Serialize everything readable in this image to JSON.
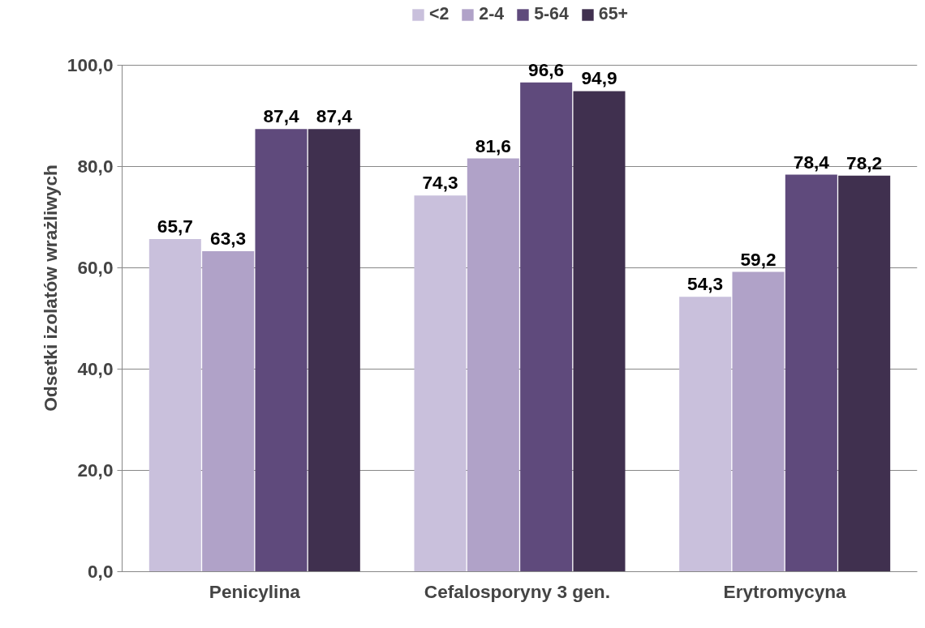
{
  "chart_data": {
    "type": "bar",
    "ylabel": "Odsetki izolatów wrażliwych",
    "categories": [
      "Penicylina",
      "Cefalosporyny  3 gen.",
      "Erytromycyna"
    ],
    "series": [
      {
        "name": "<2",
        "color": "#c9c0dc",
        "values": [
          65.7,
          74.3,
          54.3
        ],
        "value_labels": [
          "65,7",
          "74,3",
          "54,3"
        ]
      },
      {
        "name": "2-4",
        "color": "#b0a2c8",
        "values": [
          63.3,
          81.6,
          59.2
        ],
        "value_labels": [
          "63,3",
          "81,6",
          "59,2"
        ]
      },
      {
        "name": "5-64",
        "color": "#5f4a7c",
        "values": [
          87.4,
          96.6,
          78.4
        ],
        "value_labels": [
          "87,4",
          "96,6",
          "78,4"
        ]
      },
      {
        "name": "65+",
        "color": "#40304f",
        "values": [
          87.4,
          94.9,
          78.2
        ],
        "value_labels": [
          "87,4",
          "94,9",
          "78,2"
        ]
      }
    ],
    "ylim": [
      0,
      100
    ],
    "yticks": [
      {
        "value": 0,
        "label": "0,0"
      },
      {
        "value": 20,
        "label": "20,0"
      },
      {
        "value": 40,
        "label": "40,0"
      },
      {
        "value": 60,
        "label": "60,0"
      },
      {
        "value": 80,
        "label": "80,0"
      },
      {
        "value": 100,
        "label": "100,0"
      }
    ],
    "grid": "y",
    "legend": "top"
  }
}
